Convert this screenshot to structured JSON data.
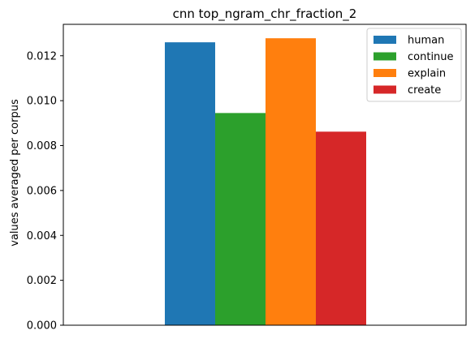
{
  "chart_data": {
    "type": "bar",
    "title": "cnn top_ngram_chr_fraction_2",
    "xlabel": "",
    "ylabel": "values averaged per corpus",
    "ylim": [
      0,
      0.0134
    ],
    "yticks": [
      "0.000",
      "0.002",
      "0.004",
      "0.006",
      "0.008",
      "0.010",
      "0.012"
    ],
    "categories": [
      ""
    ],
    "series": [
      {
        "name": "human",
        "values": [
          0.0126
        ],
        "color": "#1f77b4"
      },
      {
        "name": "continue",
        "values": [
          0.00945
        ],
        "color": "#2ca02c"
      },
      {
        "name": "explain",
        "values": [
          0.01278
        ],
        "color": "#ff7f0e"
      },
      {
        "name": "create",
        "values": [
          0.00862
        ],
        "color": "#d62728"
      }
    ],
    "grid": false,
    "legend_position": "top-right"
  }
}
